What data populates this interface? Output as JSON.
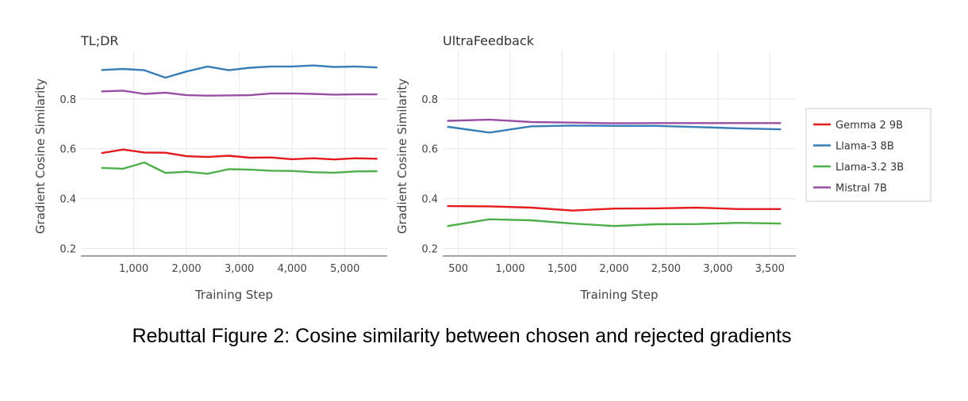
{
  "caption": "Rebuttal Figure 2: Cosine similarity between chosen and rejected gradients",
  "chart_data": [
    {
      "type": "line",
      "title": "TL;DR",
      "xlabel": "Training Step",
      "ylabel": "Gradient Cosine Similarity",
      "xlim": [
        0,
        5800
      ],
      "ylim": [
        0.17,
        0.99
      ],
      "xticks": [
        1000,
        2000,
        3000,
        4000,
        5000
      ],
      "xtick_labels": [
        "1,000",
        "2,000",
        "3,000",
        "4,000",
        "5,000"
      ],
      "yticks": [
        0.2,
        0.4,
        0.6,
        0.8
      ],
      "ytick_labels": [
        "0.2",
        "0.4",
        "0.6",
        "0.8"
      ],
      "grid": true,
      "x": [
        400,
        800,
        1200,
        1600,
        2000,
        2400,
        2800,
        3200,
        3600,
        4000,
        4400,
        4800,
        5200,
        5600
      ],
      "series": [
        {
          "name": "Gemma 2 9B",
          "color": "#e41a1c",
          "values": [
            0.583,
            0.597,
            0.585,
            0.584,
            0.57,
            0.567,
            0.572,
            0.564,
            0.565,
            0.558,
            0.562,
            0.557,
            0.562,
            0.56
          ]
        },
        {
          "name": "Llama-3 8B",
          "color": "#377eb8",
          "values": [
            0.916,
            0.92,
            0.915,
            0.885,
            0.91,
            0.93,
            0.915,
            0.925,
            0.93,
            0.93,
            0.934,
            0.928,
            0.93,
            0.926
          ]
        },
        {
          "name": "Llama-3.2 3B",
          "color": "#4daf4a",
          "values": [
            0.523,
            0.52,
            0.545,
            0.503,
            0.508,
            0.5,
            0.518,
            0.516,
            0.512,
            0.511,
            0.506,
            0.504,
            0.509,
            0.51
          ]
        },
        {
          "name": "Mistral 7B",
          "color": "#984ea3",
          "values": [
            0.83,
            0.833,
            0.82,
            0.825,
            0.815,
            0.813,
            0.814,
            0.815,
            0.822,
            0.822,
            0.82,
            0.817,
            0.818,
            0.818
          ]
        }
      ]
    },
    {
      "type": "line",
      "title": "UltraFeedback",
      "xlabel": "Training Step",
      "ylabel": "Gradient Cosine Similarity",
      "xlim": [
        350,
        3750
      ],
      "ylim": [
        0.17,
        0.99
      ],
      "xticks": [
        500,
        1000,
        1500,
        2000,
        2500,
        3000,
        3500
      ],
      "xtick_labels": [
        "500",
        "1,000",
        "1,500",
        "2,000",
        "2,500",
        "3,000",
        "3,500"
      ],
      "yticks": [
        0.2,
        0.4,
        0.6,
        0.8
      ],
      "ytick_labels": [
        "0.2",
        "0.4",
        "0.6",
        "0.8"
      ],
      "grid": true,
      "x": [
        400,
        800,
        1200,
        1600,
        2000,
        2400,
        2800,
        3200,
        3600
      ],
      "series": [
        {
          "name": "Gemma 2 9B",
          "color": "#e41a1c",
          "values": [
            0.37,
            0.369,
            0.364,
            0.352,
            0.36,
            0.361,
            0.364,
            0.358,
            0.358
          ]
        },
        {
          "name": "Llama-3 8B",
          "color": "#377eb8",
          "values": [
            0.688,
            0.665,
            0.69,
            0.693,
            0.692,
            0.692,
            0.687,
            0.682,
            0.678
          ]
        },
        {
          "name": "Llama-3.2 3B",
          "color": "#4daf4a",
          "values": [
            0.29,
            0.317,
            0.313,
            0.3,
            0.29,
            0.297,
            0.298,
            0.303,
            0.3
          ]
        },
        {
          "name": "Mistral 7B",
          "color": "#984ea3",
          "values": [
            0.712,
            0.717,
            0.707,
            0.705,
            0.702,
            0.703,
            0.703,
            0.703,
            0.703
          ]
        }
      ]
    }
  ],
  "legend": {
    "placement": "right",
    "items": [
      {
        "name": "Gemma 2 9B",
        "color": "#e41a1c"
      },
      {
        "name": "Llama-3 8B",
        "color": "#377eb8"
      },
      {
        "name": "Llama-3.2 3B",
        "color": "#4daf4a"
      },
      {
        "name": "Mistral 7B",
        "color": "#984ea3"
      }
    ]
  }
}
